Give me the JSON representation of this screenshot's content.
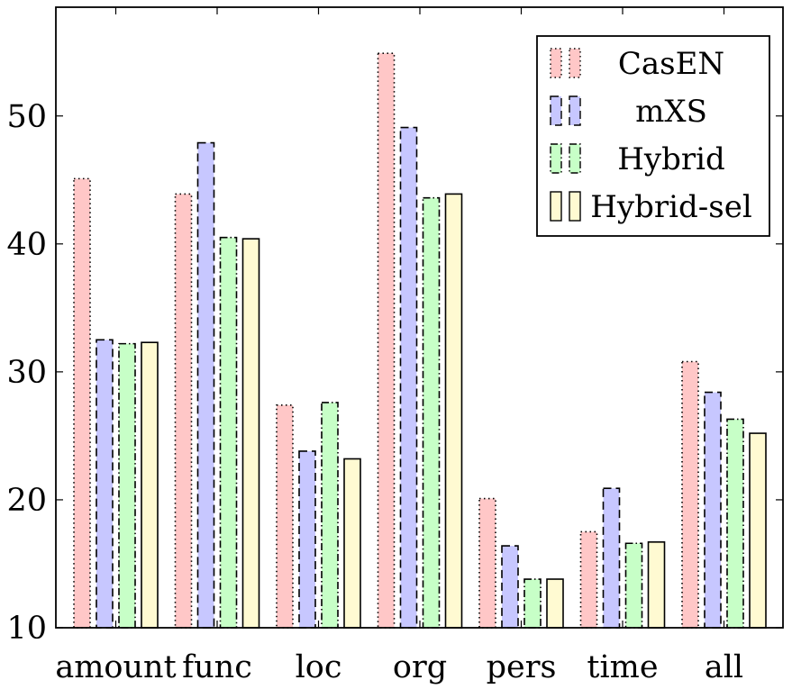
{
  "chart_data": {
    "type": "bar",
    "categories": [
      "amount",
      "func",
      "loc",
      "org",
      "pers",
      "time",
      "all"
    ],
    "series": [
      {
        "name": "CasEN",
        "values": [
          45.1,
          43.9,
          27.4,
          54.9,
          20.1,
          17.5,
          30.8
        ],
        "color": "#ffc7c7",
        "dash": "dotted"
      },
      {
        "name": "mXS",
        "values": [
          32.5,
          47.9,
          23.8,
          49.1,
          16.4,
          20.9,
          28.4
        ],
        "color": "#c7c7ff",
        "dash": "dashed"
      },
      {
        "name": "Hybrid",
        "values": [
          32.2,
          40.5,
          27.6,
          43.6,
          13.8,
          16.6,
          26.3
        ],
        "color": "#c7ffc7",
        "dash": "dashdotted"
      },
      {
        "name": "Hybrid-sel",
        "values": [
          32.3,
          40.4,
          23.2,
          43.9,
          13.8,
          16.7,
          25.2
        ],
        "color": "#fffad2",
        "dash": "solid"
      }
    ],
    "ylim": [
      10,
      58.5
    ],
    "yticks": [
      10,
      20,
      30,
      40,
      50
    ],
    "title": "",
    "xlabel": "",
    "ylabel": "",
    "legend_position": "top-right",
    "grid": false
  }
}
